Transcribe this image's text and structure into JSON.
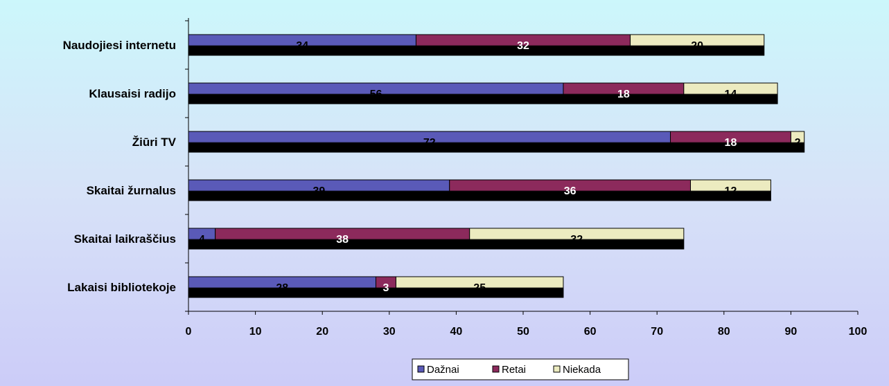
{
  "chart_data": {
    "type": "bar",
    "orientation": "horizontal",
    "stacked": true,
    "title": "",
    "xlabel": "",
    "ylabel": "",
    "categories": [
      "Naudojiesi internetu",
      "Klausaisi radijo",
      "Žiūri TV",
      "Skaitai žurnalus",
      "Skaitai laikraščius",
      "Lakaisi bibliotekoje"
    ],
    "series": [
      {
        "name": "Dažnai",
        "color": "#5a5ab8",
        "label_color": "#000000",
        "values": [
          34,
          56,
          72,
          39,
          4,
          28
        ]
      },
      {
        "name": "Retai",
        "color": "#8c2a5c",
        "label_color": "#ffffff",
        "values": [
          32,
          18,
          18,
          36,
          38,
          3
        ]
      },
      {
        "name": "Niekada",
        "color": "#ecebc0",
        "label_color": "#000000",
        "values": [
          20,
          14,
          2,
          12,
          32,
          25
        ]
      }
    ],
    "xlim": [
      0,
      100
    ],
    "xticks": [
      "0",
      "10",
      "20",
      "30",
      "40",
      "50",
      "60",
      "70",
      "80",
      "90",
      "100"
    ],
    "grid": false,
    "legend_position": "bottom"
  }
}
